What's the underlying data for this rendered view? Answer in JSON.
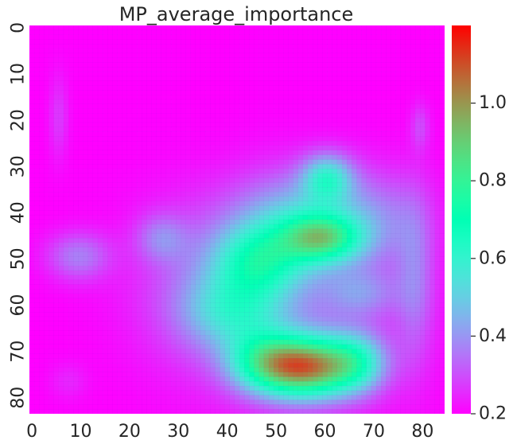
{
  "chart_data": {
    "type": "heatmap",
    "title": "MP_average_importance",
    "xlabel": "",
    "ylabel": "",
    "x_range": [
      0,
      85
    ],
    "y_range": [
      0,
      84
    ],
    "y_inverted": true,
    "x_ticks": [
      "0",
      "10",
      "20",
      "30",
      "40",
      "50",
      "60",
      "70",
      "80"
    ],
    "y_ticks": [
      "0",
      "10",
      "20",
      "30",
      "40",
      "50",
      "60",
      "70",
      "80"
    ],
    "colormap": "rainbow",
    "colorbar": {
      "min": 0.2,
      "max": 1.2,
      "ticks": [
        "0.2",
        "0.4",
        "0.6",
        "0.8",
        "1.0"
      ]
    },
    "background_value": 0.2,
    "regions": [
      {
        "x": 57,
        "y": 74,
        "rx": 7,
        "ry": 5,
        "value": 0.98
      },
      {
        "x": 48,
        "y": 73,
        "rx": 6,
        "ry": 5,
        "value": 0.6
      },
      {
        "x": 67,
        "y": 73,
        "rx": 5,
        "ry": 5,
        "value": 0.55
      },
      {
        "x": 60,
        "y": 46,
        "rx": 6,
        "ry": 4,
        "value": 0.7
      },
      {
        "x": 61,
        "y": 33,
        "rx": 4,
        "ry": 4,
        "value": 0.55
      },
      {
        "x": 47,
        "y": 51,
        "rx": 7,
        "ry": 6,
        "value": 0.55
      },
      {
        "x": 42,
        "y": 62,
        "rx": 8,
        "ry": 6,
        "value": 0.45
      },
      {
        "x": 54,
        "y": 42,
        "rx": 9,
        "ry": 8,
        "value": 0.45
      },
      {
        "x": 70,
        "y": 42,
        "rx": 8,
        "ry": 8,
        "value": 0.38
      },
      {
        "x": 10,
        "y": 50,
        "rx": 5,
        "ry": 4,
        "value": 0.38
      },
      {
        "x": 27,
        "y": 46,
        "rx": 4,
        "ry": 4,
        "value": 0.35
      },
      {
        "x": 68,
        "y": 58,
        "rx": 6,
        "ry": 4,
        "value": 0.35
      },
      {
        "x": 79,
        "y": 55,
        "rx": 3,
        "ry": 14,
        "value": 0.35
      },
      {
        "x": 6,
        "y": 20,
        "rx": 1.5,
        "ry": 7,
        "value": 0.28
      },
      {
        "x": 80,
        "y": 22,
        "rx": 1.5,
        "ry": 4,
        "value": 0.3
      },
      {
        "x": 8,
        "y": 77,
        "rx": 3,
        "ry": 3,
        "value": 0.25
      },
      {
        "x": 38,
        "y": 56,
        "rx": 12,
        "ry": 14,
        "value": 0.35
      },
      {
        "x": 57,
        "y": 62,
        "rx": 16,
        "ry": 16,
        "value": 0.3
      }
    ]
  }
}
